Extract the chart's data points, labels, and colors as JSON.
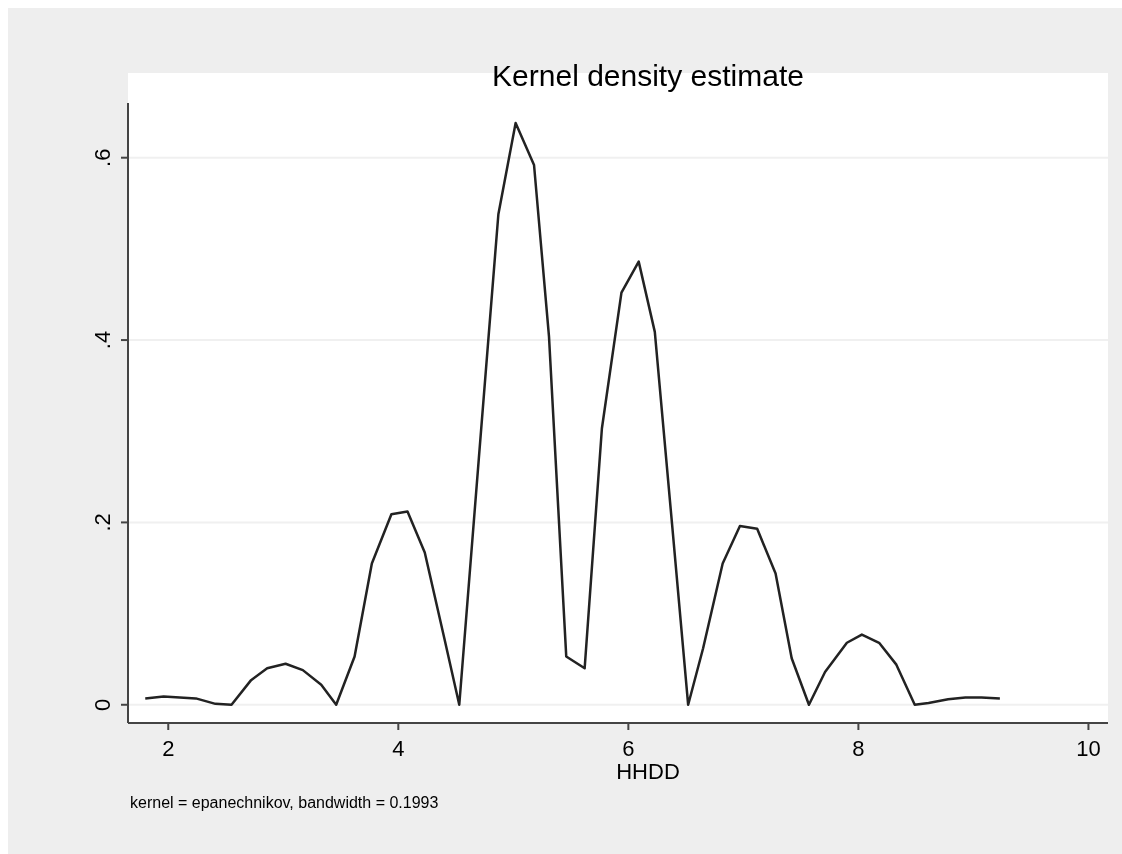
{
  "chart_data": {
    "type": "line",
    "title": "Kernel density estimate",
    "xlabel": "HHDD",
    "annotations": [
      "kernel = epanechnikov, bandwidth = 0.1993"
    ],
    "x": [
      1.8,
      1.96,
      2.1,
      2.24,
      2.41,
      2.55,
      2.72,
      2.86,
      3.02,
      3.17,
      3.33,
      3.46,
      3.62,
      3.77,
      3.94,
      4.08,
      4.23,
      4.4,
      4.53,
      4.7,
      4.87,
      5.02,
      5.18,
      5.31,
      5.46,
      5.62,
      5.77,
      5.94,
      6.09,
      6.23,
      6.38,
      6.52,
      6.65,
      6.82,
      6.97,
      7.12,
      7.28,
      7.42,
      7.57,
      7.71,
      7.9,
      8.03,
      8.18,
      8.33,
      8.49,
      8.61,
      8.78,
      8.93,
      9.07,
      9.23
    ],
    "series": [
      {
        "color": "#222222",
        "values": [
          0.007,
          0.009,
          0.008,
          0.007,
          0.001,
          0,
          0.027,
          0.04,
          0.045,
          0.038,
          0.022,
          0,
          0.053,
          0.155,
          0.209,
          0.212,
          0.167,
          0.073,
          0,
          0.27,
          0.538,
          0.638,
          0.592,
          0.404,
          0.053,
          0.04,
          0.303,
          0.452,
          0.486,
          0.409,
          0.198,
          0,
          0.062,
          0.155,
          0.196,
          0.193,
          0.144,
          0.051,
          0,
          0.036,
          0.068,
          0.077,
          0.068,
          0.044,
          0,
          0.002,
          0.006,
          0.008,
          0.008,
          0.007
        ]
      }
    ],
    "xlim": [
      1.65,
      10.17
    ],
    "ylim": [
      -0.02,
      0.66
    ],
    "xticks": [
      2,
      4,
      6,
      8,
      10
    ],
    "yticks": [
      {
        "value": 0,
        "label": "0"
      },
      {
        "value": 0.2,
        "label": ".2"
      },
      {
        "value": 0.4,
        "label": ".4"
      },
      {
        "value": 0.6,
        "label": ".6"
      }
    ],
    "grid": "y",
    "marker": "none",
    "line_style": "solid"
  }
}
